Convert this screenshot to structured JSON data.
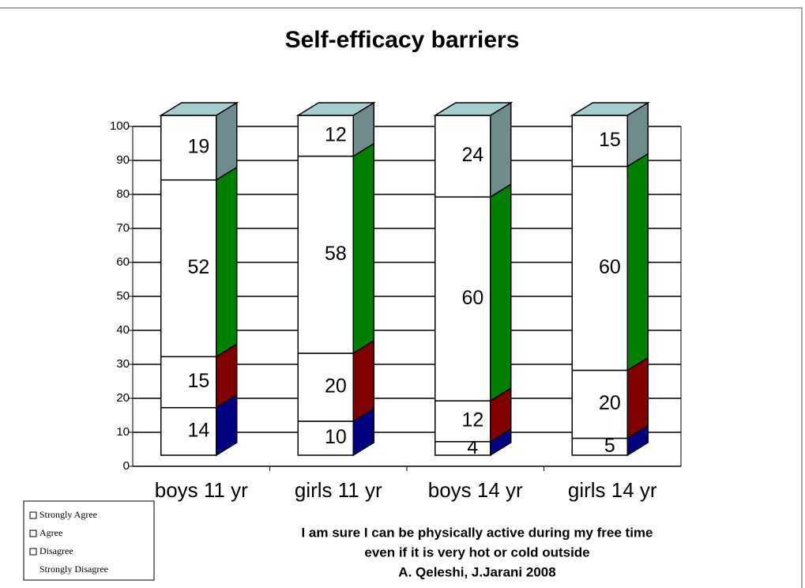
{
  "chart_data": {
    "type": "bar3d-stacked",
    "title": "Self-efficacy barriers",
    "categories": [
      "boys 11 yr",
      "girls 11 yr",
      "boys 14 yr",
      "girls 14 yr"
    ],
    "series": [
      {
        "name": "Strongly Agree",
        "color": "#6f8b8b",
        "values": [
          19,
          12,
          24,
          15
        ]
      },
      {
        "name": "Agree",
        "color": "#008000",
        "values": [
          52,
          58,
          60,
          60
        ]
      },
      {
        "name": "Disagree",
        "color": "#800000",
        "values": [
          15,
          20,
          12,
          20
        ]
      },
      {
        "name": "Strongly  Disagree",
        "color": "#000080",
        "values": [
          14,
          10,
          4,
          5
        ]
      }
    ],
    "ylim": [
      0,
      100
    ],
    "yticks": [
      0,
      10,
      20,
      30,
      40,
      50,
      60,
      70,
      80,
      90,
      100
    ],
    "grid": true,
    "annotations": [
      "I am sure I can be physically active during my free time",
      "even if it is very hot or cold outside",
      "A. Qeleshi, J.Jarani 2008"
    ]
  }
}
